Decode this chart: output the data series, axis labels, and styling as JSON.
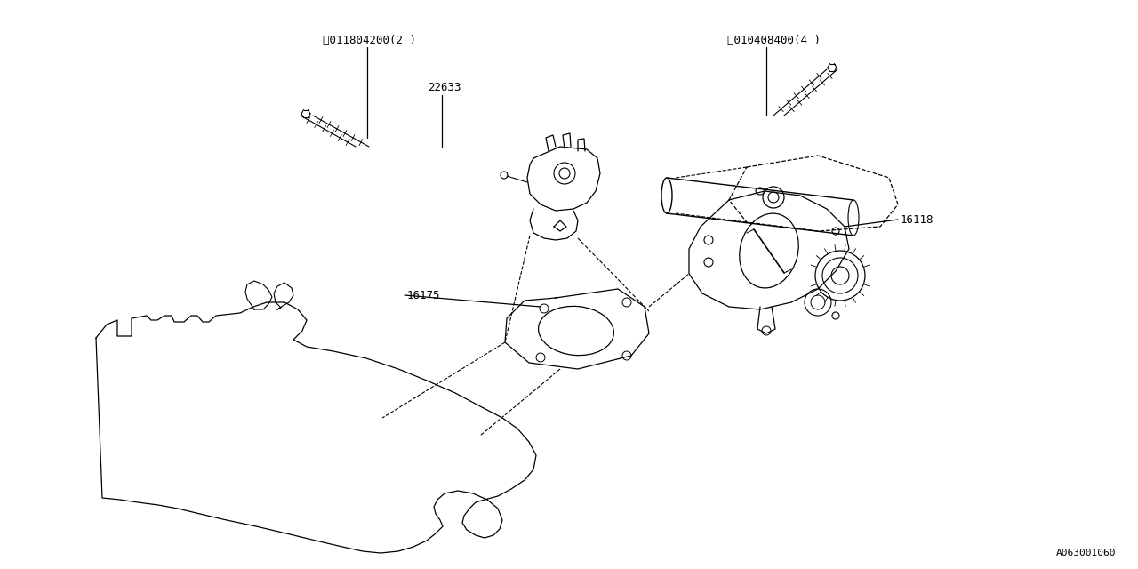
{
  "bg_color": "#ffffff",
  "line_color": "#000000",
  "fig_width": 12.8,
  "fig_height": 6.4,
  "dpi": 100,
  "labels": {
    "S_part": "Ⓜ011804200(2 )",
    "B_part": "Ⓑ010408400(4 )",
    "n22633": "22633",
    "n16118": "16118",
    "n16175": "16175",
    "diagram_id": "A063001060"
  },
  "font_size": 9,
  "small_font_size": 8,
  "lw": 0.9
}
